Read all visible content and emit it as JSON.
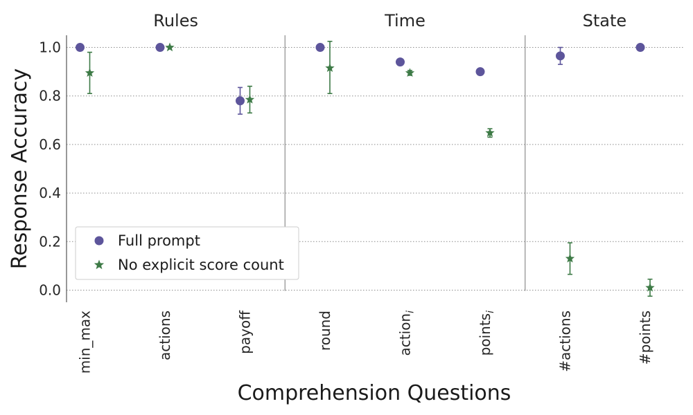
{
  "chart_data": {
    "type": "scatter",
    "xlabel": "Comprehension Questions",
    "ylabel": "Response Accuracy",
    "ylim": [
      -0.05,
      1.05
    ],
    "yticks": [
      "0.0",
      "0.2",
      "0.4",
      "0.6",
      "0.8",
      "1.0"
    ],
    "grid": "horizontal dotted",
    "legend_position": "lower-left",
    "groups": [
      {
        "label": "Rules",
        "categories": [
          "min_max",
          "actions",
          "payoff"
        ]
      },
      {
        "label": "Time",
        "categories": [
          "round",
          "action_i",
          "points_i"
        ]
      },
      {
        "label": "State",
        "categories": [
          "#actions",
          "#points"
        ]
      }
    ],
    "categories": [
      {
        "base": "min_max",
        "sub": ""
      },
      {
        "base": "actions",
        "sub": ""
      },
      {
        "base": "payoff",
        "sub": ""
      },
      {
        "base": "round",
        "sub": ""
      },
      {
        "base": "action",
        "sub": "i"
      },
      {
        "base": "points",
        "sub": "i"
      },
      {
        "base": "#actions",
        "sub": ""
      },
      {
        "base": "#points",
        "sub": ""
      }
    ],
    "series": [
      {
        "name": "Full prompt",
        "marker": "circle",
        "color": "#5d559b",
        "values": [
          1.0,
          1.0,
          0.78,
          1.0,
          0.94,
          0.9,
          0.965,
          1.0
        ],
        "err_low": [
          1.0,
          1.0,
          0.725,
          1.0,
          0.94,
          0.9,
          0.93,
          1.0
        ],
        "err_high": [
          1.0,
          1.0,
          0.835,
          1.0,
          0.94,
          0.9,
          1.0,
          1.0
        ]
      },
      {
        "name": "No explicit score count",
        "marker": "star",
        "color": "#3d7a46",
        "values": [
          0.895,
          1.0,
          0.785,
          0.915,
          0.895,
          0.648,
          0.13,
          0.01
        ],
        "err_low": [
          0.81,
          1.0,
          0.73,
          0.81,
          0.885,
          0.63,
          0.065,
          -0.025
        ],
        "err_high": [
          0.98,
          1.0,
          0.84,
          1.025,
          0.905,
          0.665,
          0.195,
          0.045
        ]
      }
    ]
  }
}
